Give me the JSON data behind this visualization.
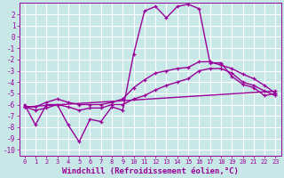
{
  "title": "",
  "xlabel": "Windchill (Refroidissement éolien,°C)",
  "ylabel": "",
  "bg_color": "#c8e8e8",
  "grid_color": "#ffffff",
  "line_color": "#990099",
  "xlim": [
    -0.5,
    23.5
  ],
  "ylim": [
    -10.5,
    3.0
  ],
  "xticks": [
    0,
    1,
    2,
    3,
    4,
    5,
    6,
    7,
    8,
    9,
    10,
    11,
    12,
    13,
    14,
    15,
    16,
    17,
    18,
    19,
    20,
    21,
    22,
    23
  ],
  "yticks": [
    2,
    1,
    0,
    -1,
    -2,
    -3,
    -4,
    -5,
    -6,
    -7,
    -8,
    -9,
    -10
  ],
  "line1_x": [
    0,
    1,
    2,
    3,
    4,
    5,
    6,
    7,
    8,
    9,
    10,
    11,
    12,
    13,
    14,
    15,
    16,
    17,
    18,
    19,
    20,
    21,
    22,
    23
  ],
  "line1_y": [
    -6.0,
    -7.8,
    -6.0,
    -6.0,
    -7.8,
    -9.3,
    -7.3,
    -7.5,
    -6.2,
    -6.5,
    -1.5,
    2.3,
    2.7,
    1.7,
    2.7,
    2.9,
    2.5,
    -2.3,
    -2.3,
    -3.5,
    -4.2,
    -4.5,
    -5.2,
    -5.0
  ],
  "line2_x": [
    0,
    1,
    2,
    3,
    4,
    5,
    6,
    7,
    8,
    9,
    10,
    11,
    12,
    13,
    14,
    15,
    16,
    17,
    18,
    19,
    20,
    21,
    22,
    23
  ],
  "line2_y": [
    -6.2,
    -6.2,
    -5.8,
    -5.5,
    -5.8,
    -6.0,
    -6.0,
    -6.0,
    -5.8,
    -5.5,
    -4.5,
    -3.8,
    -3.2,
    -3.0,
    -2.8,
    -2.7,
    -2.2,
    -2.2,
    -2.5,
    -2.8,
    -3.3,
    -3.7,
    -4.3,
    -5.0
  ],
  "line3_x": [
    0,
    1,
    2,
    3,
    4,
    5,
    6,
    7,
    8,
    9,
    10,
    11,
    12,
    13,
    14,
    15,
    16,
    17,
    18,
    19,
    20,
    21,
    22,
    23
  ],
  "line3_y": [
    -6.2,
    -6.5,
    -6.3,
    -6.0,
    -6.2,
    -6.5,
    -6.3,
    -6.3,
    -6.0,
    -6.0,
    -5.5,
    -5.2,
    -4.7,
    -4.3,
    -4.0,
    -3.7,
    -3.0,
    -2.8,
    -2.8,
    -3.2,
    -4.0,
    -4.3,
    -4.8,
    -5.2
  ],
  "line4_x": [
    0,
    23
  ],
  "line4_y": [
    -6.2,
    -4.8
  ],
  "marker_size": 3.5,
  "linewidth": 1.0,
  "xlabel_fontsize": 6.5,
  "tick_fontsize": 5.5
}
